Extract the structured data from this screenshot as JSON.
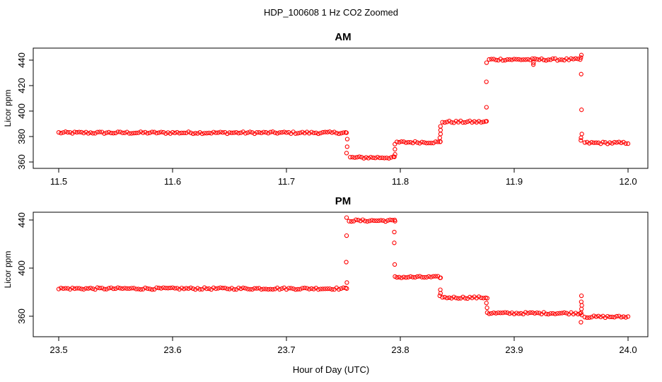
{
  "figure": {
    "title": "HDP_100608  1 Hz CO2 Zoomed",
    "xlabel": "Hour of Day (UTC)"
  },
  "colors": {
    "points": "#ff0000",
    "axis": "#000000",
    "background": "#ffffff"
  },
  "chart_data": [
    {
      "type": "scatter",
      "title": "AM",
      "xlabel": "",
      "ylabel": "Licor ppm",
      "xlim": [
        11.5,
        12.0
      ],
      "ylim": [
        360,
        446
      ],
      "x_ticks": [
        "11.5",
        "11.6",
        "11.7",
        "11.8",
        "11.9",
        "12.0"
      ],
      "y_ticks": [
        "360",
        "380",
        "400",
        "420",
        "440"
      ],
      "grid": false,
      "legend": "none",
      "series": [
        {
          "segments": [
            {
              "x": [
                11.5,
                11.753
              ],
              "y": 383
            },
            {
              "x": [
                11.756,
                11.795
              ],
              "y": 363.5
            },
            {
              "x": [
                11.797,
                11.835
              ],
              "y": 375.5
            },
            {
              "x": [
                11.837,
                11.876
              ],
              "y": 391.5
            },
            {
              "x": [
                11.878,
                11.959
              ],
              "y": 440.5
            },
            {
              "x": [
                11.962,
                12.0
              ],
              "y": 375
            }
          ],
          "transitions": [
            {
              "x": 11.753,
              "y": [
                383,
                378,
                372,
                367
              ]
            },
            {
              "x": 11.795,
              "y": [
                364,
                366,
                370,
                374
              ]
            },
            {
              "x": 11.835,
              "y": [
                376,
                379,
                382,
                385,
                388
              ]
            },
            {
              "x": 11.876,
              "y": [
                392,
                403,
                423,
                438
              ]
            },
            {
              "x": 11.917,
              "y": [
                436.5,
                438
              ]
            },
            {
              "x": 11.959,
              "y": [
                444,
                442,
                429,
                401,
                382,
                379,
                377
              ]
            }
          ]
        }
      ]
    },
    {
      "type": "scatter",
      "title": "PM",
      "xlabel": "Hour of Day (UTC)",
      "ylabel": "Licor ppm",
      "xlim": [
        23.5,
        24.0
      ],
      "ylim": [
        353,
        446
      ],
      "x_ticks": [
        "23.5",
        "23.6",
        "23.7",
        "23.8",
        "23.9",
        "24.0"
      ],
      "y_ticks": [
        "360",
        "400",
        "440"
      ],
      "grid": false,
      "legend": "none",
      "series": [
        {
          "segments": [
            {
              "x": [
                23.5,
                23.753
              ],
              "y": 383
            },
            {
              "x": [
                23.755,
                23.795
              ],
              "y": 439.5
            },
            {
              "x": [
                23.797,
                23.835
              ],
              "y": 392.5
            },
            {
              "x": [
                23.837,
                23.876
              ],
              "y": 375.5
            },
            {
              "x": [
                23.878,
                23.959
              ],
              "y": 362.5
            },
            {
              "x": [
                23.962,
                24.0
              ],
              "y": 359.5
            }
          ],
          "transitions": [
            {
              "x": 23.753,
              "y": [
                383,
                388,
                405,
                427,
                442
              ]
            },
            {
              "x": 23.795,
              "y": [
                439,
                430,
                421,
                403,
                393
              ]
            },
            {
              "x": 23.835,
              "y": [
                392,
                382,
                379,
                377
              ]
            },
            {
              "x": 23.876,
              "y": [
                375,
                371,
                367,
                363
              ]
            },
            {
              "x": 23.959,
              "y": [
                355,
                377,
                372,
                369,
                366,
                363,
                361
              ]
            }
          ]
        }
      ]
    }
  ]
}
